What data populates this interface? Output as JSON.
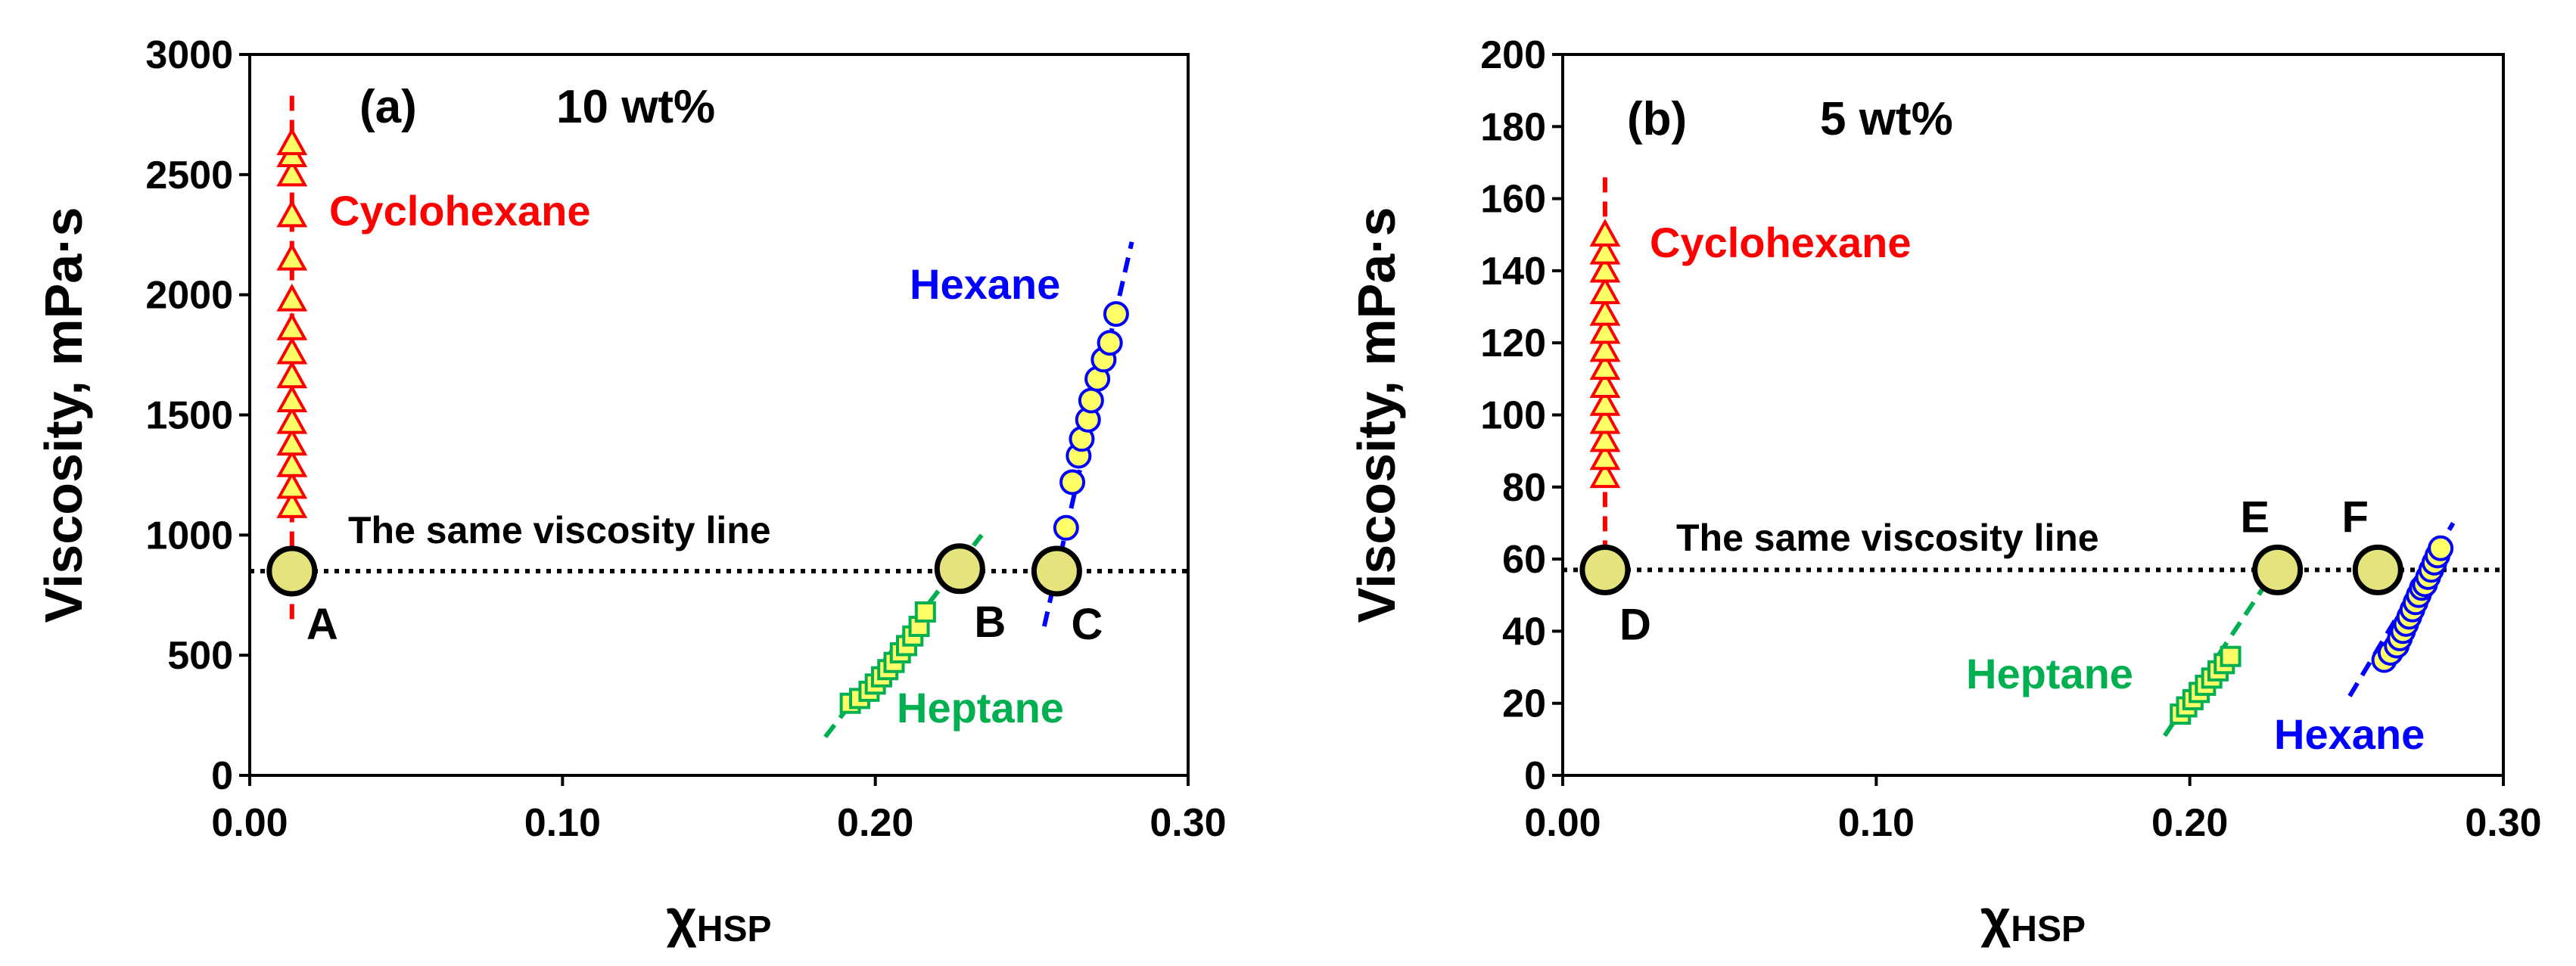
{
  "chart_data": [
    {
      "type": "scatter",
      "panel_label": "(a)",
      "concentration": "10 wt%",
      "xlabel": "χ",
      "xlabel_sub": "HSP",
      "ylabel": "Viscosity, mPa·s",
      "xlim": [
        0,
        0.3
      ],
      "ylim": [
        0,
        3000
      ],
      "x_ticks": [
        "0.00",
        "0.10",
        "0.20",
        "0.30"
      ],
      "y_ticks": [
        "0",
        "500",
        "1000",
        "1500",
        "2000",
        "2500",
        "3000"
      ],
      "reference_line": {
        "y": 850,
        "label": "The same viscosity line"
      },
      "series": [
        {
          "name": "Cyclohexane",
          "color": "#ff0000",
          "marker": "triangle",
          "x": [
            0.0135,
            0.0135,
            0.0135,
            0.0135,
            0.0135,
            0.0135,
            0.0135,
            0.0135,
            0.0135,
            0.0135,
            0.0135,
            0.0135,
            0.0135,
            0.0135,
            0.0135
          ],
          "y": [
            1120,
            1200,
            1290,
            1380,
            1470,
            1560,
            1660,
            1760,
            1860,
            1980,
            2150,
            2330,
            2500,
            2580,
            2630
          ],
          "fit": {
            "x": [
              0.0135,
              0.0135
            ],
            "y": [
              650,
              2830
            ]
          }
        },
        {
          "name": "Heptane",
          "color": "#00b050",
          "marker": "square",
          "x": [
            0.192,
            0.195,
            0.198,
            0.2,
            0.202,
            0.204,
            0.206,
            0.208,
            0.21,
            0.212,
            0.214,
            0.216
          ],
          "y": [
            300,
            320,
            350,
            380,
            410,
            440,
            470,
            510,
            540,
            580,
            620,
            680
          ],
          "fit": {
            "x": [
              0.184,
              0.234
            ],
            "y": [
              160,
              1000
            ]
          }
        },
        {
          "name": "Hexane",
          "color": "#0000ff",
          "marker": "circle",
          "x": [
            0.261,
            0.263,
            0.265,
            0.266,
            0.268,
            0.269,
            0.271,
            0.273,
            0.275,
            0.277
          ],
          "y": [
            1030,
            1220,
            1330,
            1400,
            1480,
            1560,
            1650,
            1730,
            1800,
            1920
          ],
          "fit": {
            "x": [
              0.254,
              0.282
            ],
            "y": [
              620,
              2220
            ]
          }
        }
      ],
      "highlight_points": [
        {
          "label": "A",
          "x": 0.0135,
          "y": 850
        },
        {
          "label": "B",
          "x": 0.227,
          "y": 860
        },
        {
          "label": "C",
          "x": 0.258,
          "y": 850
        }
      ]
    },
    {
      "type": "scatter",
      "panel_label": "(b)",
      "concentration": "5 wt%",
      "xlabel": "χ",
      "xlabel_sub": "HSP",
      "ylabel": "Viscosity, mPa·s",
      "xlim": [
        0,
        0.3
      ],
      "ylim": [
        0,
        200
      ],
      "x_ticks": [
        "0.00",
        "0.10",
        "0.20",
        "0.30"
      ],
      "y_ticks": [
        "0",
        "20",
        "40",
        "60",
        "80",
        "100",
        "120",
        "140",
        "160",
        "180",
        "200"
      ],
      "reference_line": {
        "y": 57,
        "label": "The same viscosity line"
      },
      "series": [
        {
          "name": "Cyclohexane",
          "color": "#ff0000",
          "marker": "triangle",
          "x": [
            0.0135,
            0.0135,
            0.0135,
            0.0135,
            0.0135,
            0.0135,
            0.0135,
            0.0135,
            0.0135,
            0.0135,
            0.0135,
            0.0135,
            0.0135,
            0.0135
          ],
          "y": [
            83,
            88,
            93,
            98,
            103,
            108,
            113,
            118,
            123,
            128,
            134,
            140,
            145,
            150
          ],
          "fit": {
            "x": [
              0.0135,
              0.0135
            ],
            "y": [
              61,
              166
            ]
          }
        },
        {
          "name": "Heptane",
          "color": "#00b050",
          "marker": "square",
          "x": [
            0.197,
            0.199,
            0.201,
            0.203,
            0.205,
            0.207,
            0.209,
            0.211,
            0.213
          ],
          "y": [
            17,
            19,
            21,
            23,
            25,
            27,
            29,
            31,
            33
          ],
          "fit": {
            "x": [
              0.192,
              0.228
            ],
            "y": [
              11,
              58
            ]
          }
        },
        {
          "name": "Hexane",
          "color": "#0000ff",
          "marker": "circle",
          "x": [
            0.262,
            0.264,
            0.266,
            0.267,
            0.268,
            0.269,
            0.27,
            0.271,
            0.272,
            0.273,
            0.274,
            0.275,
            0.276,
            0.277,
            0.278,
            0.279,
            0.28
          ],
          "y": [
            32,
            34,
            36,
            38,
            40,
            42,
            44,
            46,
            48,
            50,
            52,
            53,
            55,
            57,
            59,
            61,
            63
          ],
          "fit": {
            "x": [
              0.251,
              0.284
            ],
            "y": [
              22,
              70
            ]
          }
        }
      ],
      "highlight_points": [
        {
          "label": "D",
          "x": 0.0135,
          "y": 57
        },
        {
          "label": "E",
          "x": 0.228,
          "y": 57
        },
        {
          "label": "F",
          "x": 0.26,
          "y": 57
        }
      ]
    }
  ]
}
